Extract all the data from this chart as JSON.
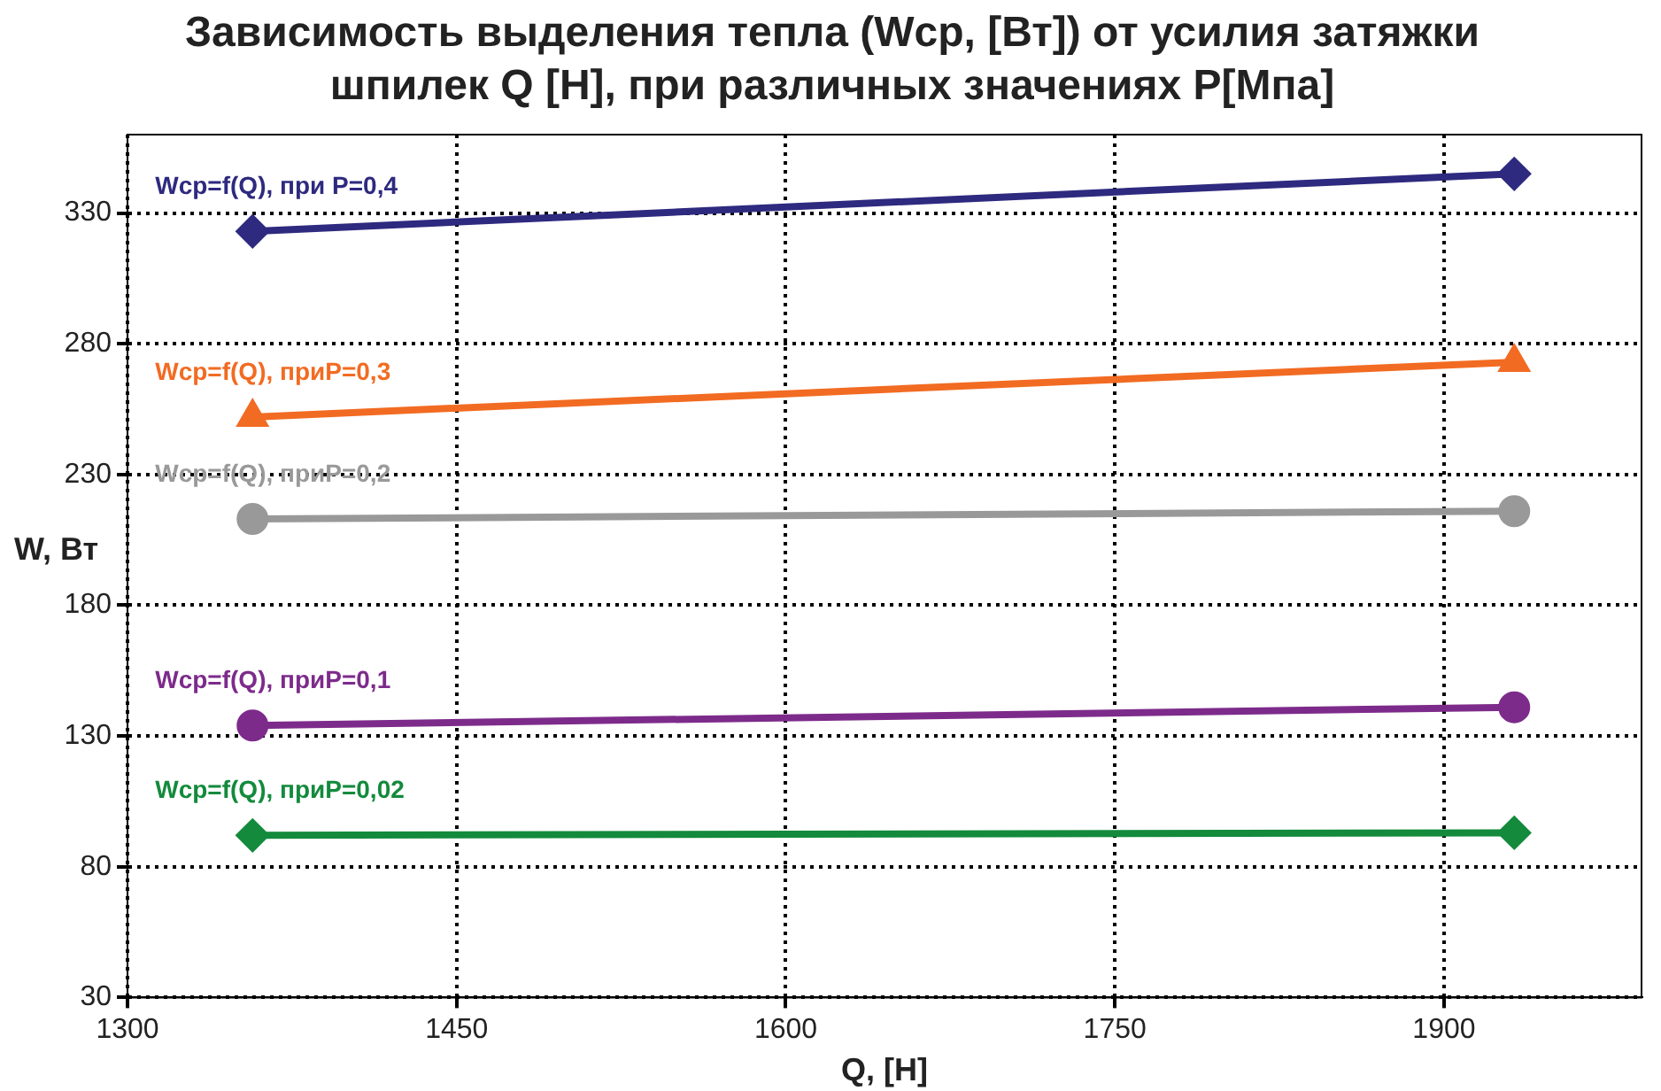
{
  "chart_data": {
    "type": "line",
    "title": "Зависимость выделения тепла (Wcp, [Вт]) от усилия затяжки шпилек Q [H], при различных значениях P[Мпа]",
    "xlabel": "Q, [H]",
    "ylabel": "W, Вт",
    "x": [
      1357,
      1932
    ],
    "series": [
      {
        "name": "Wcp=f(Q), при P=0,4",
        "color": "#2e2a7f",
        "marker": "diamond",
        "values": [
          323,
          345
        ]
      },
      {
        "name": "Wcp=f(Q), приP=0,3",
        "color": "#f26b22",
        "marker": "triangle",
        "values": [
          252,
          273
        ]
      },
      {
        "name": "Wcp=f(Q), приP=0,2",
        "color": "#999999",
        "marker": "circle",
        "values": [
          213,
          216
        ]
      },
      {
        "name": "Wcp=f(Q), приP=0,1",
        "color": "#7d2b8b",
        "marker": "circle",
        "values": [
          134,
          141
        ]
      },
      {
        "name": "Wcp=f(Q), приP=0,02",
        "color": "#138a3c",
        "marker": "diamond",
        "values": [
          92,
          93
        ]
      }
    ],
    "xlim": [
      1300,
      1990
    ],
    "xticks": [
      1300,
      1450,
      1600,
      1750,
      1900
    ],
    "ylim": [
      30,
      360
    ],
    "yticks": [
      30,
      80,
      130,
      180,
      230,
      280,
      330
    ],
    "grid": true,
    "legend": false,
    "line_style": "solid"
  }
}
